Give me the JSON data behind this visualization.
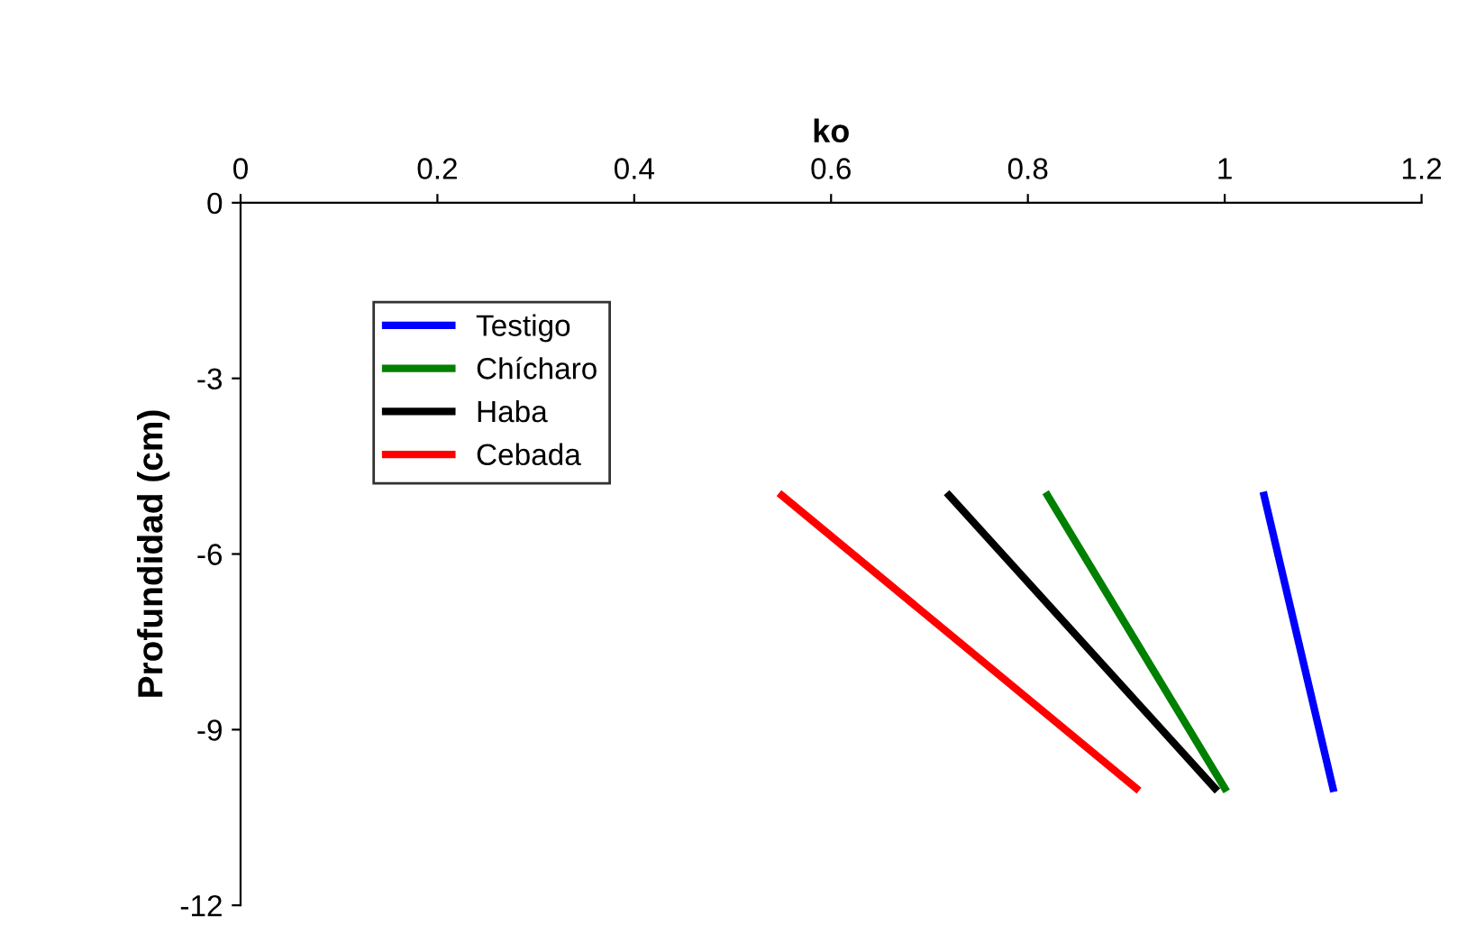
{
  "chart_data": {
    "type": "line",
    "xlabel": "ko",
    "ylabel": "Profundidad (cm)",
    "xlim": [
      0,
      1.2
    ],
    "xticks": [
      0,
      0.2,
      0.4,
      0.6,
      0.8,
      1,
      1.2
    ],
    "ylim": [
      -12,
      0
    ],
    "yticks": [
      -12,
      -9,
      -6,
      -3,
      0
    ],
    "legend": "top left",
    "grid": false,
    "marker": "none",
    "line_style": "solid",
    "series": [
      {
        "name": "Testigo",
        "color": "#0000ff",
        "x": [
          1.04,
          1.11
        ],
        "values": [
          -5,
          -10
        ]
      },
      {
        "name": "Chícharo",
        "color": "#008000",
        "x": [
          0.82,
          1.0
        ],
        "values": [
          -5,
          -10
        ]
      },
      {
        "name": "Haba",
        "color": "#000000",
        "x": [
          0.72,
          0.99
        ],
        "values": [
          -5,
          -10
        ]
      },
      {
        "name": "Cebada",
        "color": "#ff0000",
        "x": [
          0.55,
          0.91
        ],
        "values": [
          -5,
          -10
        ]
      }
    ]
  }
}
